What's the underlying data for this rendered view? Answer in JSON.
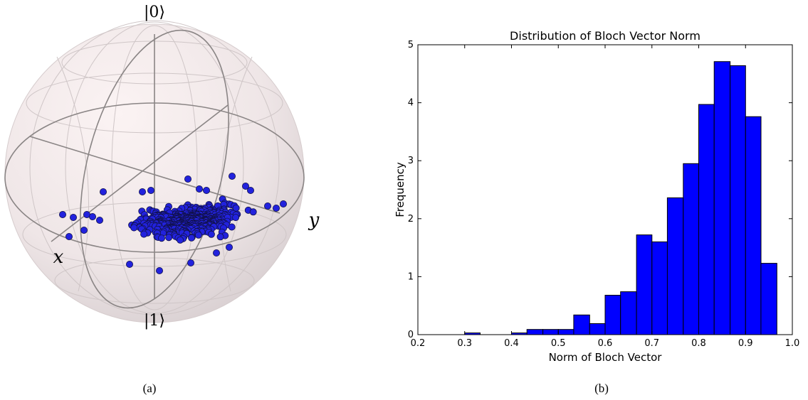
{
  "captions": {
    "left": "(a)",
    "right": "(b)"
  },
  "bloch": {
    "labels": {
      "top": "|0⟩",
      "bottom": "|1⟩",
      "x": "x",
      "y": "y"
    },
    "point_color": "#2222dd",
    "point_edge": "#11114a"
  },
  "chart_data": {
    "type": "bar",
    "title": "Distribution of Bloch Vector Norm",
    "xlabel": "Norm of Bloch Vector",
    "ylabel": "Frequency",
    "xlim": [
      0.2,
      1.0
    ],
    "ylim": [
      0,
      5
    ],
    "xticks": [
      "0.2",
      "0.3",
      "0.4",
      "0.5",
      "0.6",
      "0.7",
      "0.8",
      "0.9",
      "1.0"
    ],
    "yticks": [
      "0",
      "1",
      "2",
      "3",
      "4",
      "5"
    ],
    "bar_color": "#0000ff",
    "bins": [
      {
        "x0": 0.3,
        "x1": 0.333,
        "value": 0.03
      },
      {
        "x0": 0.4,
        "x1": 0.433,
        "value": 0.03
      },
      {
        "x0": 0.433,
        "x1": 0.467,
        "value": 0.09
      },
      {
        "x0": 0.467,
        "x1": 0.5,
        "value": 0.09
      },
      {
        "x0": 0.5,
        "x1": 0.533,
        "value": 0.09
      },
      {
        "x0": 0.533,
        "x1": 0.567,
        "value": 0.34
      },
      {
        "x0": 0.567,
        "x1": 0.6,
        "value": 0.19
      },
      {
        "x0": 0.6,
        "x1": 0.633,
        "value": 0.68
      },
      {
        "x0": 0.633,
        "x1": 0.667,
        "value": 0.74
      },
      {
        "x0": 0.667,
        "x1": 0.7,
        "value": 1.72
      },
      {
        "x0": 0.7,
        "x1": 0.733,
        "value": 1.6
      },
      {
        "x0": 0.733,
        "x1": 0.767,
        "value": 2.36
      },
      {
        "x0": 0.767,
        "x1": 0.8,
        "value": 2.95
      },
      {
        "x0": 0.8,
        "x1": 0.833,
        "value": 3.97
      },
      {
        "x0": 0.833,
        "x1": 0.867,
        "value": 4.71
      },
      {
        "x0": 0.867,
        "x1": 0.9,
        "value": 4.64
      },
      {
        "x0": 0.9,
        "x1": 0.933,
        "value": 3.76
      },
      {
        "x0": 0.933,
        "x1": 0.967,
        "value": 1.23
      }
    ]
  }
}
